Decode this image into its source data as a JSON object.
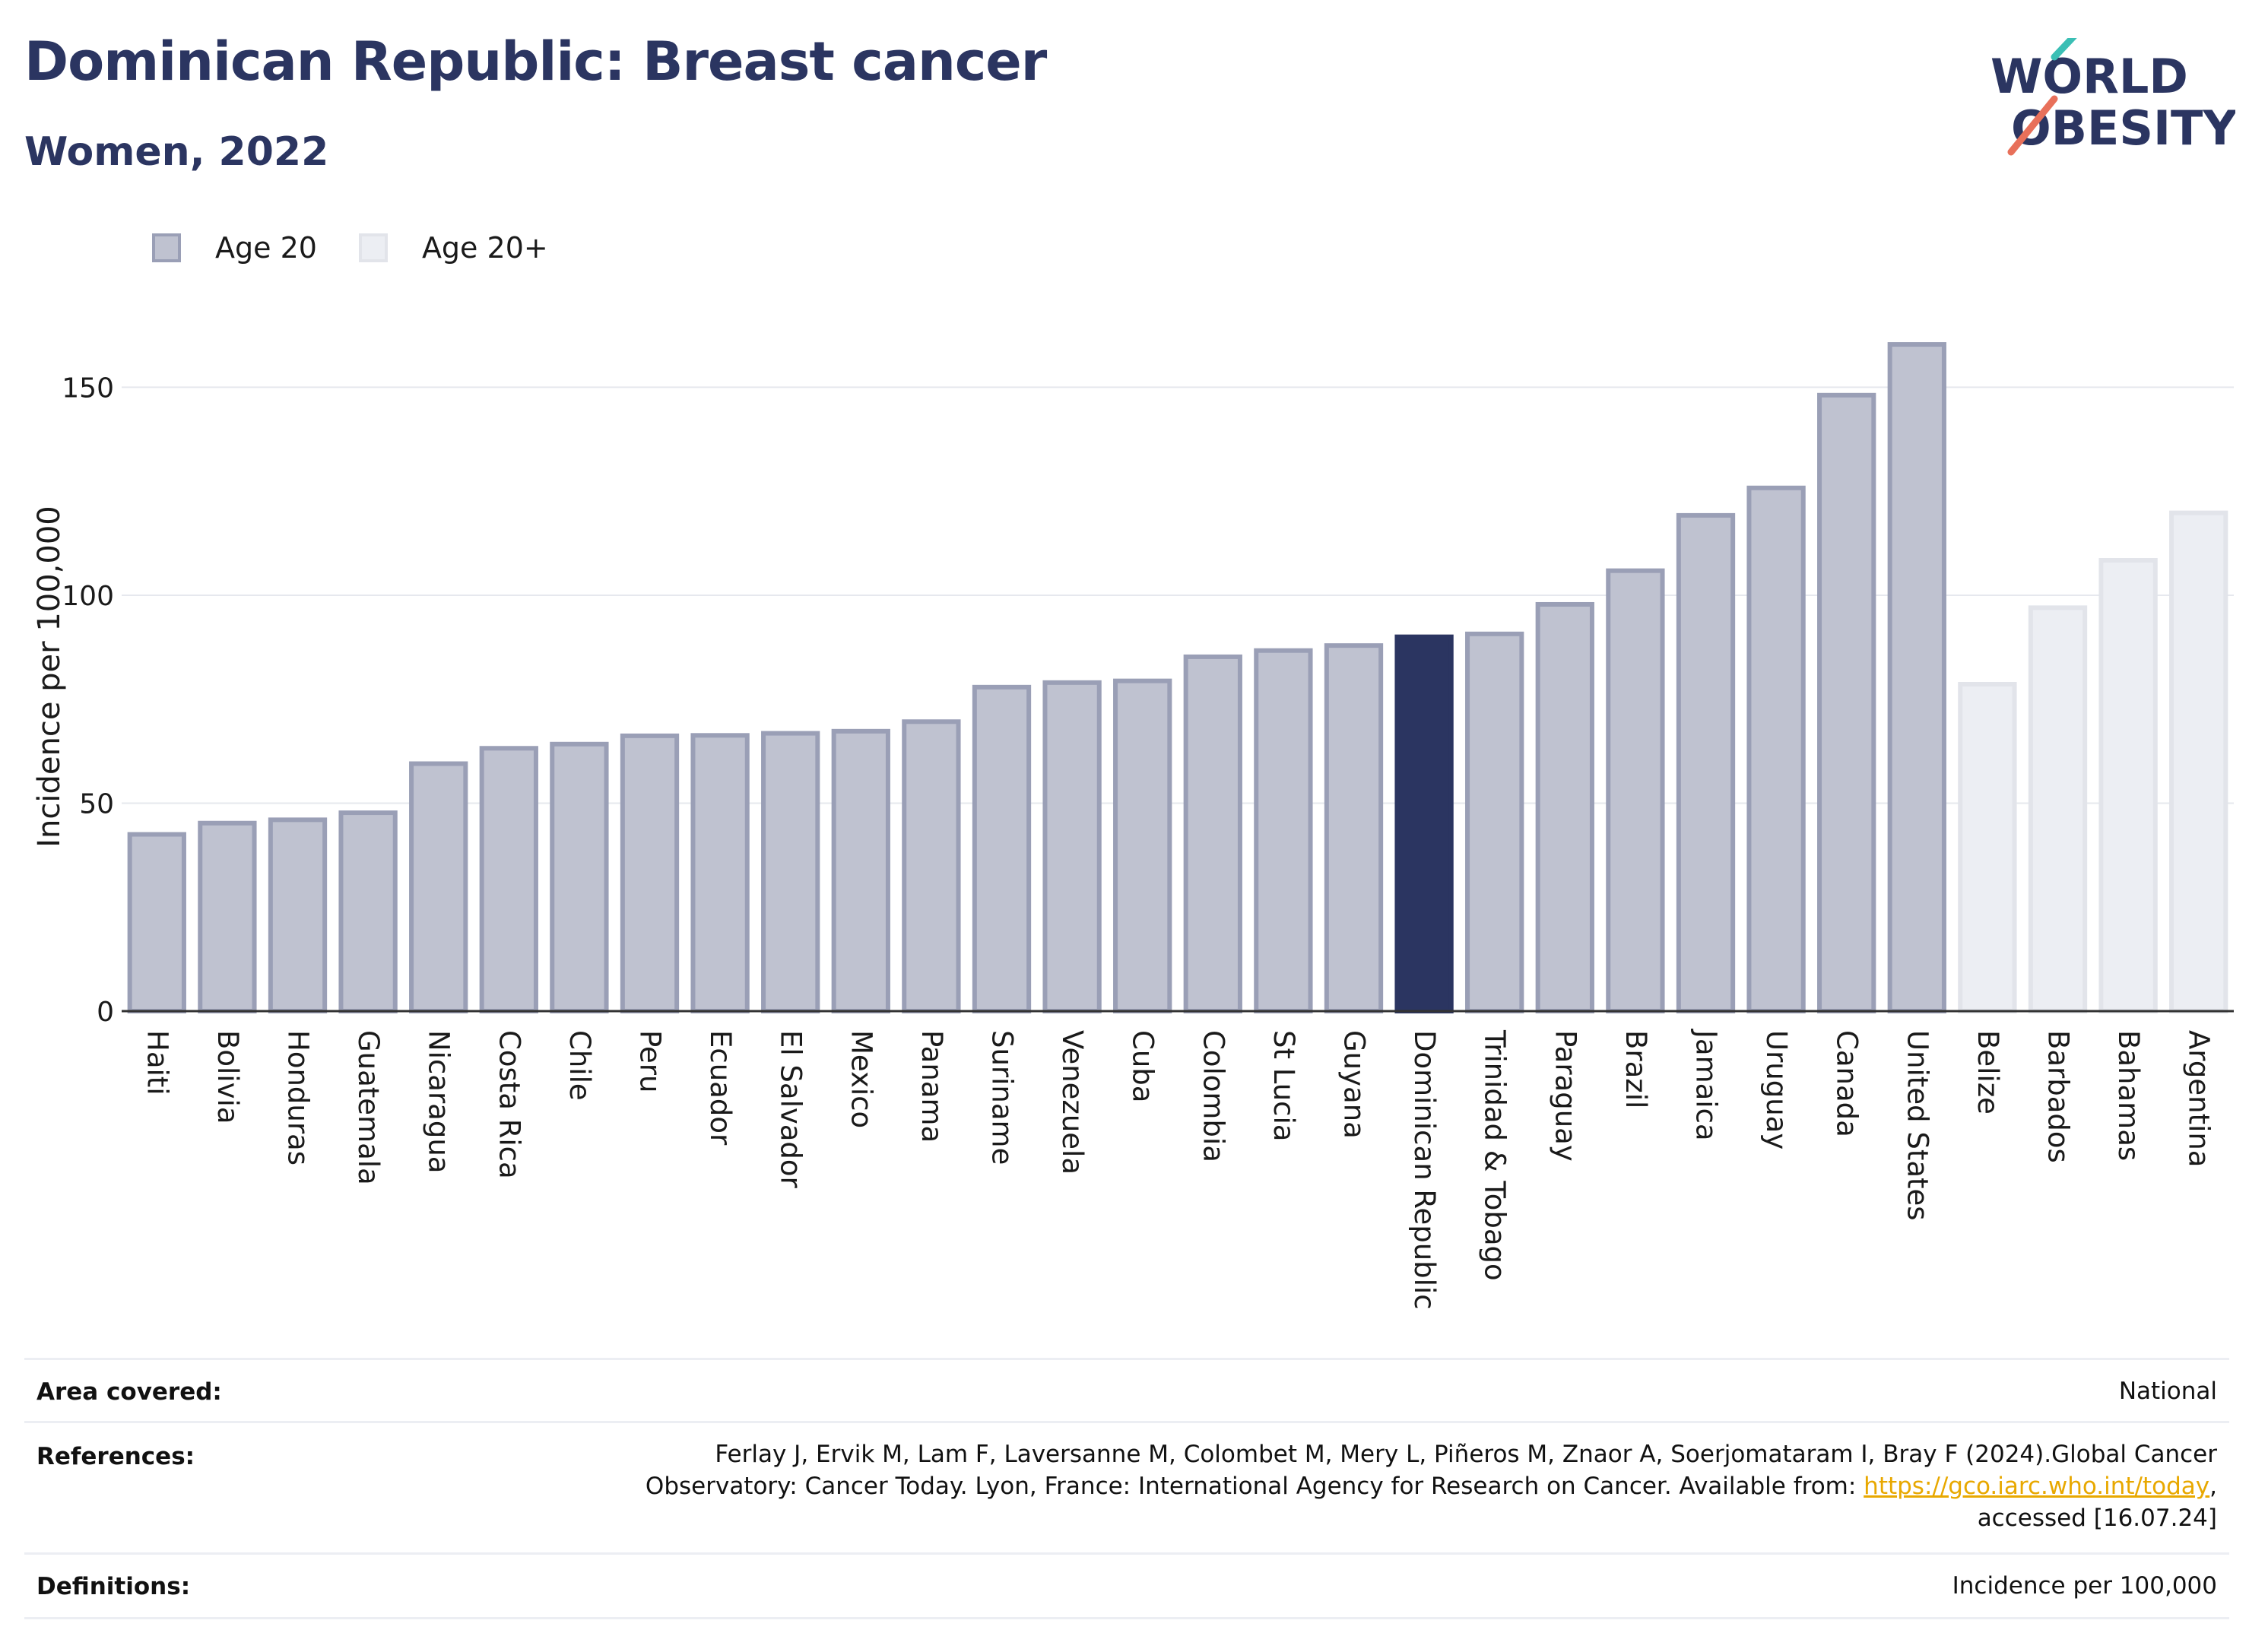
{
  "title": "Dominican Republic: Breast cancer",
  "subtitle": "Women, 2022",
  "logo": {
    "line1": "WORLD",
    "line2": "OBESITY"
  },
  "legend": [
    {
      "label": "Age 20",
      "color": "#bfc2d0",
      "border": "#9a9fb6"
    },
    {
      "label": "Age 20+",
      "color": "#eceef3",
      "border": "#e2e4ea"
    }
  ],
  "colors": {
    "highlight": "#2b3561",
    "grid": "#e6e8ee",
    "axis": "#333333"
  },
  "chart_data": {
    "type": "bar",
    "ylabel": "Incidence per 100,000",
    "ylim": [
      0,
      170
    ],
    "yticks": [
      0,
      50,
      100,
      150
    ],
    "grid": true,
    "legend_position": "top-left",
    "categories": [
      "Haiti",
      "Bolivia",
      "Honduras",
      "Guatemala",
      "Nicaragua",
      "Costa Rica",
      "Chile",
      "Peru",
      "Ecuador",
      "El Salvador",
      "Mexico",
      "Panama",
      "Suriname",
      "Venezuela",
      "Cuba",
      "Colombia",
      "St Lucia",
      "Guyana",
      "Dominican Republic",
      "Trinidad & Tobago",
      "Paraguay",
      "Brazil",
      "Jamaica",
      "Uruguay",
      "Canada",
      "United States",
      "Belize",
      "Barbados",
      "Bahamas",
      "Argentina"
    ],
    "values": [
      42.5,
      45.2,
      46.0,
      47.7,
      59.5,
      63.2,
      64.2,
      66.2,
      66.3,
      66.8,
      67.3,
      69.6,
      77.9,
      79.0,
      79.4,
      85.2,
      86.7,
      87.9,
      90.0,
      90.7,
      97.8,
      105.9,
      119.2,
      125.8,
      148.1,
      160.3,
      78.6,
      97.0,
      108.4,
      119.8
    ],
    "series_group": [
      "Age 20",
      "Age 20",
      "Age 20",
      "Age 20",
      "Age 20",
      "Age 20",
      "Age 20",
      "Age 20",
      "Age 20",
      "Age 20",
      "Age 20",
      "Age 20",
      "Age 20",
      "Age 20",
      "Age 20",
      "Age 20",
      "Age 20",
      "Age 20",
      "Age 20",
      "Age 20",
      "Age 20",
      "Age 20",
      "Age 20",
      "Age 20",
      "Age 20",
      "Age 20",
      "Age 20+",
      "Age 20+",
      "Age 20+",
      "Age 20+"
    ],
    "highlight": "Dominican Republic"
  },
  "meta": {
    "area_key": "Area covered:",
    "area_val": "National",
    "ref_key": "References:",
    "ref_line1": "Ferlay J, Ervik M, Lam F, Laversanne M, Colombet M, Mery L, Piñeros M, Znaor A, Soerjomataram I, Bray F (2024).Global Cancer",
    "ref_line2_pre": "Observatory: Cancer Today. Lyon, France: International Agency for Research on Cancer. Available from: ",
    "ref_link": "https://gco.iarc.who.int/today",
    "ref_line2_post": ",",
    "ref_line3": "accessed [16.07.24]",
    "def_key": "Definitions:",
    "def_val": "Incidence per 100,000"
  }
}
